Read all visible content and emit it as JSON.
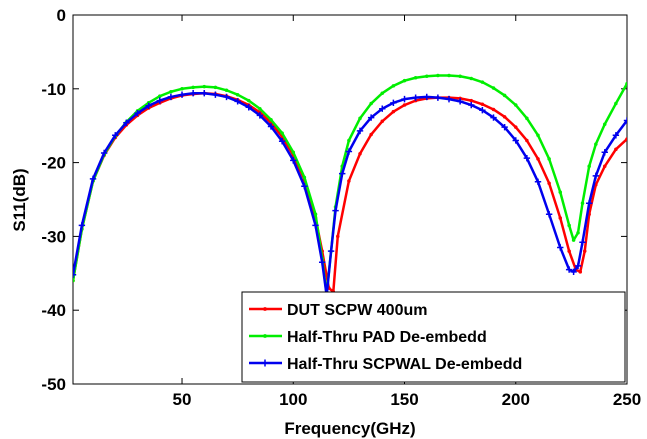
{
  "chart_data": {
    "type": "line",
    "xlabel": "Frequency(GHz)",
    "ylabel": "S11(dB)",
    "xlim": [
      1,
      250
    ],
    "ylim": [
      -50,
      0
    ],
    "xticks": [
      50,
      100,
      150,
      200,
      250
    ],
    "yticks": [
      0,
      -10,
      -20,
      -30,
      -40,
      -50
    ],
    "grid": false,
    "legend_position": "bottom-right",
    "series": [
      {
        "name": "DUT SCPW 400um",
        "color": "#ff0000",
        "marker": "dot",
        "x": [
          1,
          5,
          10,
          15,
          20,
          25,
          30,
          35,
          40,
          45,
          50,
          55,
          60,
          65,
          70,
          75,
          80,
          85,
          90,
          95,
          100,
          105,
          110,
          113,
          116,
          118,
          120,
          125,
          130,
          135,
          140,
          145,
          150,
          155,
          160,
          165,
          170,
          175,
          180,
          185,
          190,
          195,
          200,
          205,
          210,
          215,
          220,
          224,
          227,
          229,
          231,
          233,
          236,
          240,
          245,
          250
        ],
        "y": [
          -36,
          -29,
          -22.5,
          -19,
          -16.6,
          -14.9,
          -13.6,
          -12.6,
          -11.9,
          -11.3,
          -10.9,
          -10.7,
          -10.6,
          -10.7,
          -11,
          -11.5,
          -12.2,
          -13.2,
          -14.6,
          -16.5,
          -19,
          -22.3,
          -27.5,
          -32,
          -37,
          -37.5,
          -30,
          -22.5,
          -18.8,
          -16.2,
          -14.4,
          -13.1,
          -12.2,
          -11.6,
          -11.3,
          -11.2,
          -11.2,
          -11.3,
          -11.6,
          -12.1,
          -12.8,
          -13.8,
          -15.2,
          -17,
          -19.5,
          -22.8,
          -27.5,
          -32,
          -34.5,
          -34.8,
          -32,
          -27,
          -23,
          -20.5,
          -18.2,
          -16.8
        ]
      },
      {
        "name": "Half-Thru PAD De-embedd",
        "color": "#00ee00",
        "marker": "dot",
        "x": [
          1,
          5,
          10,
          15,
          20,
          25,
          30,
          35,
          40,
          45,
          50,
          55,
          60,
          65,
          70,
          75,
          80,
          85,
          90,
          95,
          100,
          105,
          110,
          113,
          115,
          117,
          119,
          122,
          125,
          130,
          135,
          140,
          145,
          150,
          155,
          160,
          165,
          170,
          175,
          180,
          185,
          190,
          195,
          200,
          205,
          210,
          215,
          220,
          224,
          226,
          228,
          230,
          233,
          236,
          240,
          245,
          250
        ],
        "y": [
          -36,
          -29,
          -22.5,
          -18.9,
          -16.4,
          -14.5,
          -13,
          -11.9,
          -11,
          -10.4,
          -10,
          -9.8,
          -9.7,
          -9.8,
          -10.2,
          -10.8,
          -11.6,
          -12.7,
          -14.2,
          -16,
          -18.6,
          -22,
          -27,
          -33,
          -37.8,
          -32,
          -26,
          -20.5,
          -17,
          -14,
          -12,
          -10.6,
          -9.6,
          -8.9,
          -8.5,
          -8.3,
          -8.2,
          -8.2,
          -8.3,
          -8.6,
          -9.1,
          -9.9,
          -10.9,
          -12.2,
          -14,
          -16.3,
          -19.5,
          -24,
          -28.5,
          -30.5,
          -29.5,
          -25.5,
          -20.5,
          -17.5,
          -14.8,
          -12,
          -9.3
        ]
      },
      {
        "name": "Half-Thru SCPWAL De-embedd",
        "color": "#0000ee",
        "marker": "star",
        "x": [
          1,
          5,
          10,
          15,
          20,
          25,
          30,
          35,
          40,
          45,
          50,
          55,
          60,
          65,
          70,
          75,
          80,
          85,
          90,
          95,
          100,
          105,
          110,
          113,
          115,
          117,
          119,
          122,
          125,
          130,
          135,
          140,
          145,
          150,
          155,
          160,
          165,
          170,
          175,
          180,
          185,
          190,
          195,
          200,
          205,
          210,
          215,
          220,
          224,
          226,
          228,
          230,
          233,
          236,
          240,
          245,
          250
        ],
        "y": [
          -35.2,
          -28.5,
          -22.2,
          -18.7,
          -16.3,
          -14.6,
          -13.3,
          -12.3,
          -11.6,
          -11.1,
          -10.8,
          -10.6,
          -10.6,
          -10.8,
          -11.1,
          -11.7,
          -12.5,
          -13.6,
          -15.1,
          -17.1,
          -19.7,
          -23.2,
          -28.5,
          -33.5,
          -38,
          -32,
          -26.5,
          -21.5,
          -18.5,
          -15.7,
          -13.9,
          -12.7,
          -11.9,
          -11.4,
          -11.2,
          -11.1,
          -11.2,
          -11.4,
          -11.7,
          -12.2,
          -12.9,
          -13.9,
          -15.2,
          -17,
          -19.4,
          -22.6,
          -27,
          -31.5,
          -34.5,
          -34.8,
          -34,
          -30.8,
          -25.5,
          -21.8,
          -18.6,
          -16.3,
          -14.3
        ]
      }
    ]
  }
}
